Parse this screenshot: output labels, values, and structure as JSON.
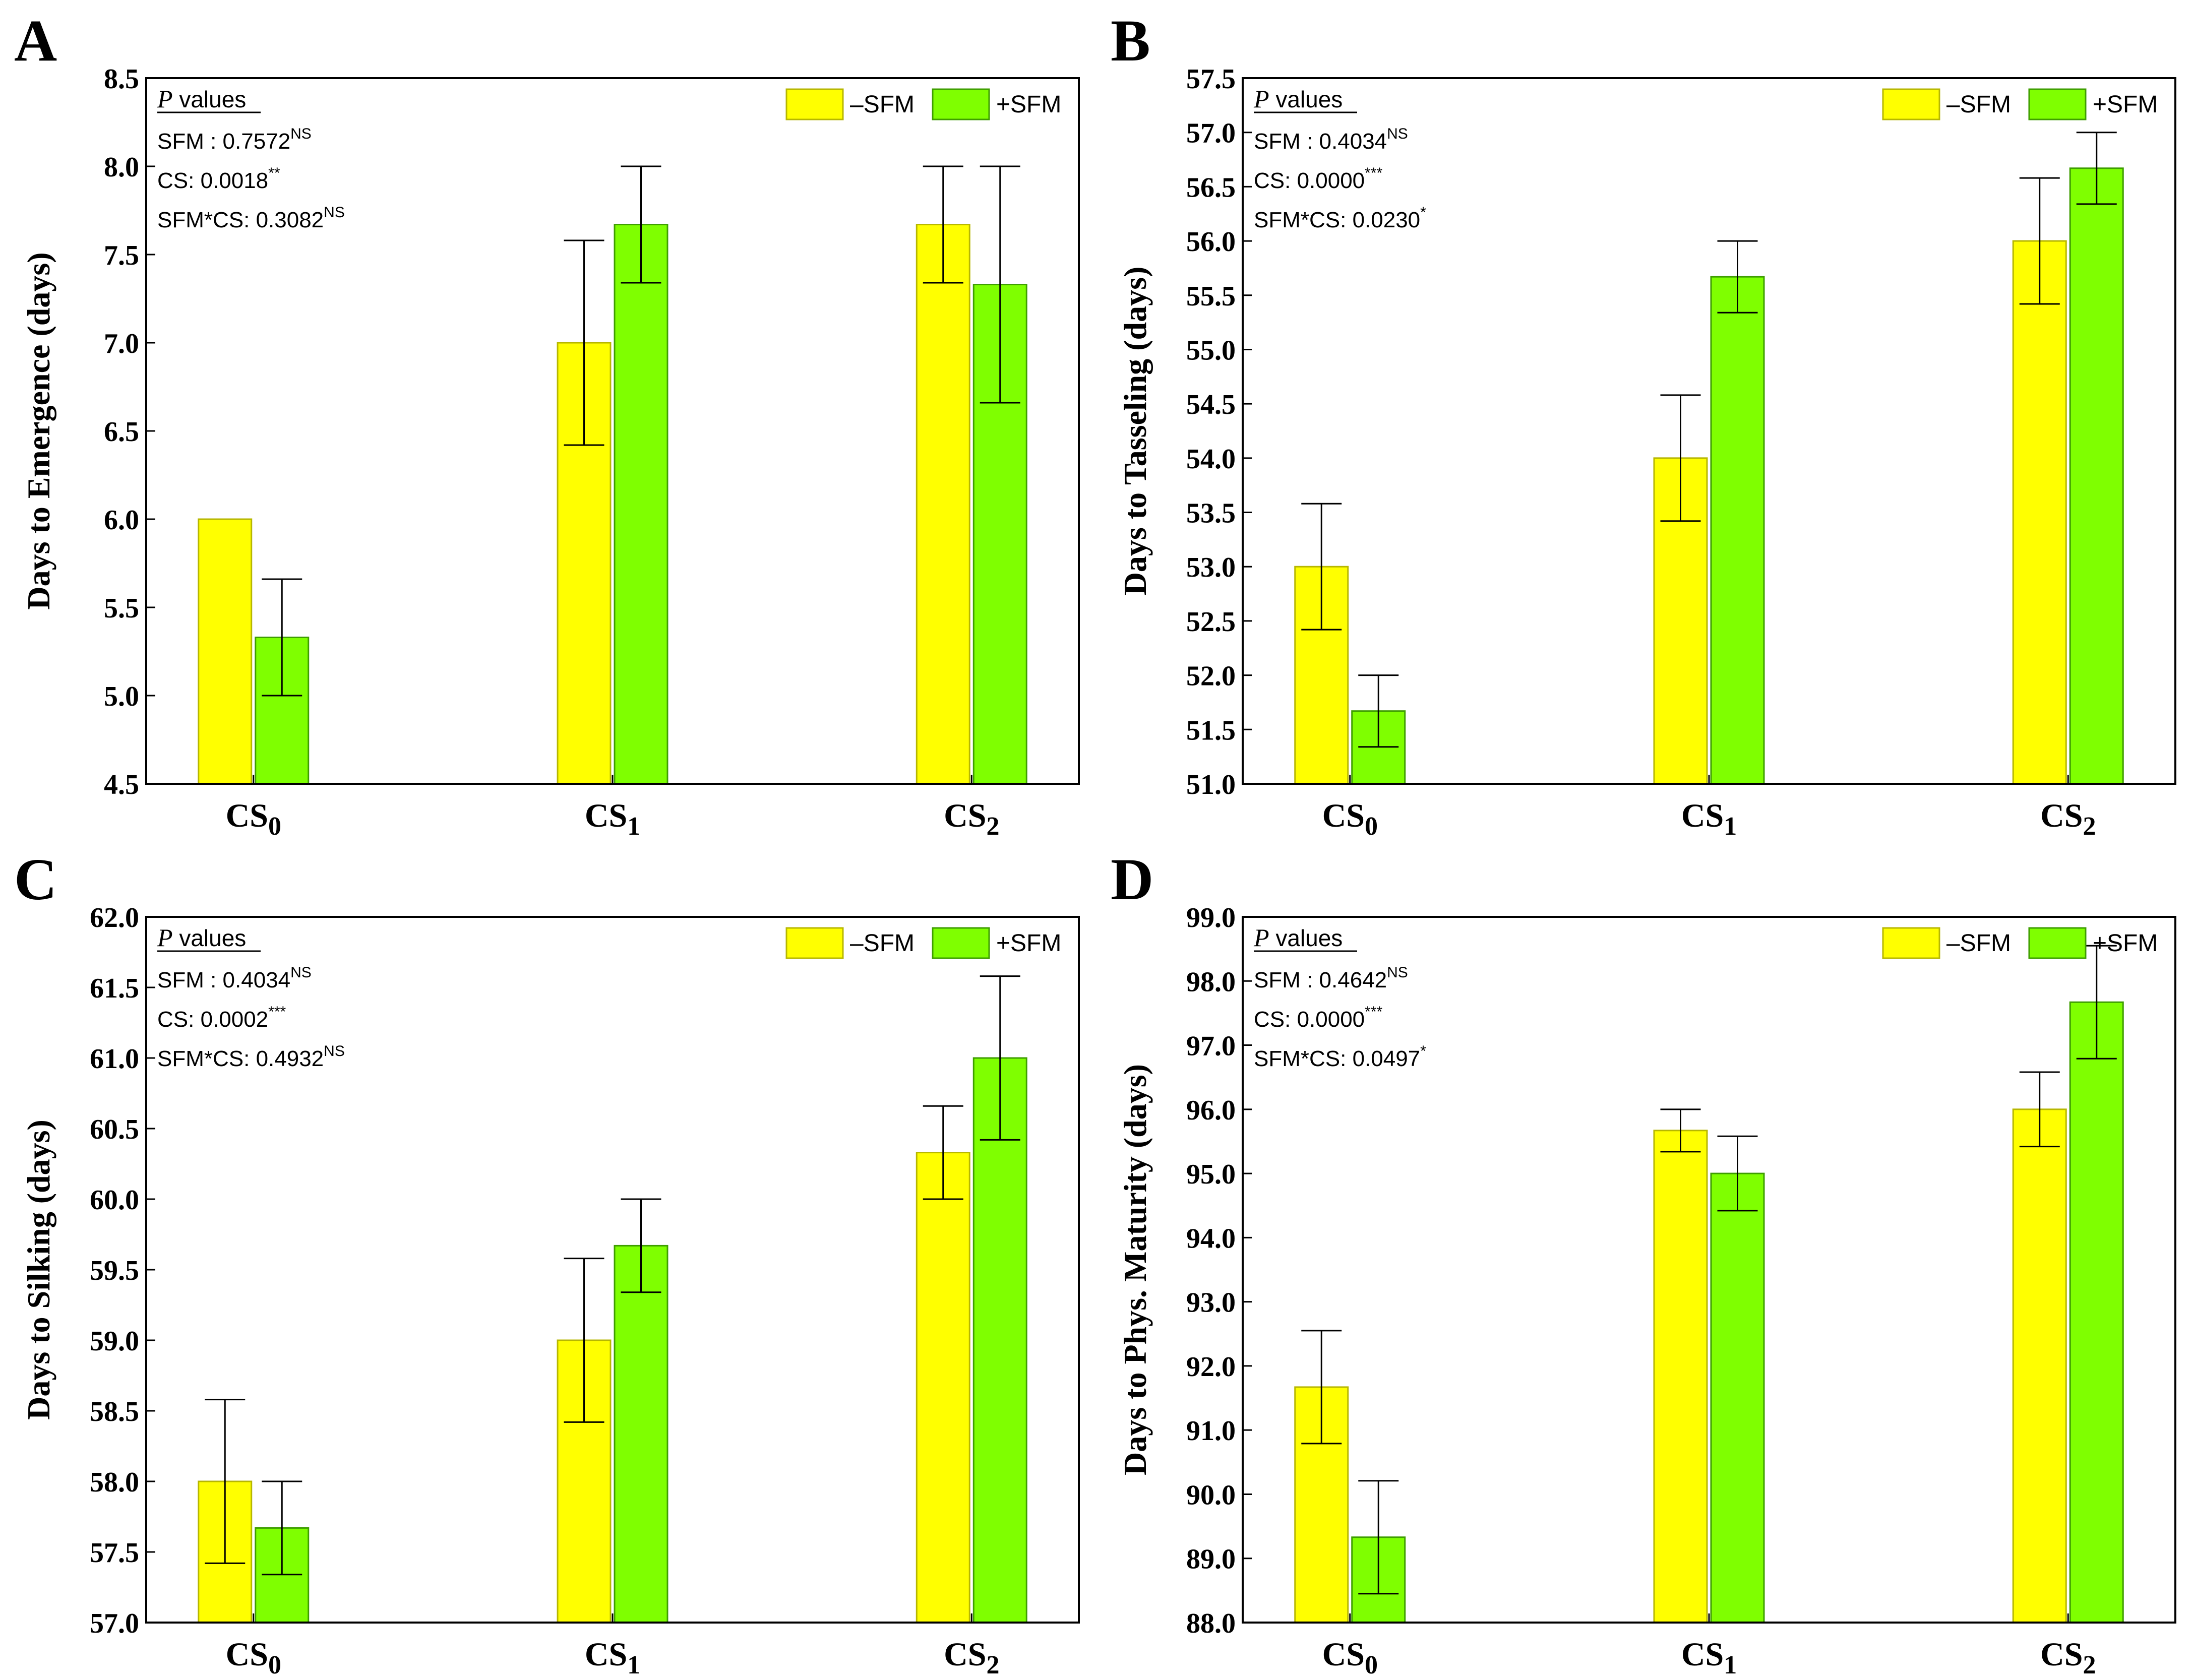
{
  "legend": {
    "minus_label": "–SFM",
    "plus_label": "+SFM"
  },
  "colors": {
    "minus_fill": "#FFFF00",
    "minus_edge": "#B7B700",
    "plus_fill": "#7FFF00",
    "plus_edge": "#3E9E00"
  },
  "chart_data": [
    {
      "type": "bar",
      "panel_label": "A",
      "ylabel": "Days to Emergence (days)",
      "ylim": [
        4.5,
        8.5
      ],
      "yticks": [
        "4.5",
        "5.0",
        "5.5",
        "6.0",
        "6.5",
        "7.0",
        "7.5",
        "8.0",
        "8.5"
      ],
      "categories": [
        {
          "base": "CS",
          "sub": "0"
        },
        {
          "base": "CS",
          "sub": "1"
        },
        {
          "base": "CS",
          "sub": "2"
        }
      ],
      "series": [
        {
          "name": "–SFM",
          "values": [
            6.0,
            7.0,
            7.67
          ],
          "errors": [
            0.0,
            0.58,
            0.33
          ]
        },
        {
          "name": "+SFM",
          "values": [
            5.33,
            7.67,
            7.33
          ],
          "errors": [
            0.33,
            0.33,
            0.67
          ]
        }
      ],
      "pvalues": {
        "heading": "P values",
        "lines": [
          {
            "text": "SFM : 0.7572",
            "sup": "NS"
          },
          {
            "text": "CS: 0.0018",
            "sup": "**"
          },
          {
            "text": "SFM*CS: 0.3082",
            "sup": "NS"
          }
        ]
      },
      "legend_position": "top-right"
    },
    {
      "type": "bar",
      "panel_label": "B",
      "ylabel": "Days to Tasseling (days)",
      "ylim": [
        51.0,
        57.5
      ],
      "yticks": [
        "51.0",
        "51.5",
        "52.0",
        "52.5",
        "53.0",
        "53.5",
        "54.0",
        "54.5",
        "55.0",
        "55.5",
        "56.0",
        "56.5",
        "57.0",
        "57.5"
      ],
      "categories": [
        {
          "base": "CS",
          "sub": "0"
        },
        {
          "base": "CS",
          "sub": "1"
        },
        {
          "base": "CS",
          "sub": "2"
        }
      ],
      "series": [
        {
          "name": "–SFM",
          "values": [
            53.0,
            54.0,
            56.0
          ],
          "errors": [
            0.58,
            0.58,
            0.58
          ]
        },
        {
          "name": "+SFM",
          "values": [
            51.67,
            55.67,
            56.67
          ],
          "errors": [
            0.33,
            0.33,
            0.33
          ]
        }
      ],
      "pvalues": {
        "heading": "P values",
        "lines": [
          {
            "text": "SFM : 0.4034",
            "sup": "NS"
          },
          {
            "text": "CS: 0.0000",
            "sup": "***"
          },
          {
            "text": "SFM*CS: 0.0230",
            "sup": "*"
          }
        ]
      },
      "legend_position": "top-right"
    },
    {
      "type": "bar",
      "panel_label": "C",
      "ylabel": "Days to Silking (days)",
      "ylim": [
        57.0,
        62.0
      ],
      "yticks": [
        "57.0",
        "57.5",
        "58.0",
        "58.5",
        "59.0",
        "59.5",
        "60.0",
        "60.5",
        "61.0",
        "61.5",
        "62.0"
      ],
      "categories": [
        {
          "base": "CS",
          "sub": "0"
        },
        {
          "base": "CS",
          "sub": "1"
        },
        {
          "base": "CS",
          "sub": "2"
        }
      ],
      "series": [
        {
          "name": "–SFM",
          "values": [
            58.0,
            59.0,
            60.33
          ],
          "errors": [
            0.58,
            0.58,
            0.33
          ]
        },
        {
          "name": "+SFM",
          "values": [
            57.67,
            59.67,
            61.0
          ],
          "errors": [
            0.33,
            0.33,
            0.58
          ]
        }
      ],
      "pvalues": {
        "heading": "P values",
        "lines": [
          {
            "text": "SFM : 0.4034",
            "sup": "NS"
          },
          {
            "text": "CS: 0.0002",
            "sup": "***"
          },
          {
            "text": "SFM*CS: 0.4932",
            "sup": "NS"
          }
        ]
      },
      "legend_position": "top-right"
    },
    {
      "type": "bar",
      "panel_label": "D",
      "ylabel": "Days to Phys. Maturity (days)",
      "ylim": [
        88.0,
        99.0
      ],
      "yticks": [
        "88.0",
        "89.0",
        "90.0",
        "91.0",
        "92.0",
        "93.0",
        "94.0",
        "95.0",
        "96.0",
        "97.0",
        "98.0",
        "99.0"
      ],
      "categories": [
        {
          "base": "CS",
          "sub": "0"
        },
        {
          "base": "CS",
          "sub": "1"
        },
        {
          "base": "CS",
          "sub": "2"
        }
      ],
      "series": [
        {
          "name": "–SFM",
          "values": [
            91.67,
            95.67,
            96.0
          ],
          "errors": [
            0.88,
            0.33,
            0.58
          ]
        },
        {
          "name": "+SFM",
          "values": [
            89.33,
            95.0,
            97.67
          ],
          "errors": [
            0.88,
            0.58,
            0.88
          ]
        }
      ],
      "pvalues": {
        "heading": "P values",
        "lines": [
          {
            "text": "SFM : 0.4642",
            "sup": "NS"
          },
          {
            "text": "CS: 0.0000",
            "sup": "***"
          },
          {
            "text": "SFM*CS: 0.0497",
            "sup": "*"
          }
        ]
      },
      "legend_position": "top-right"
    }
  ]
}
